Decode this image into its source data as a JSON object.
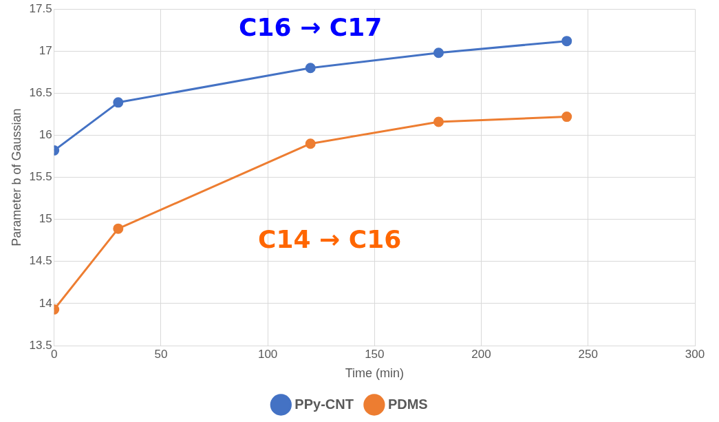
{
  "chart_data": {
    "type": "line",
    "xlabel": "Time (min)",
    "ylabel": "Parameter b of Gaussian",
    "x": [
      0,
      30,
      120,
      180,
      240
    ],
    "xlim": [
      0,
      300
    ],
    "xticks": [
      0,
      50,
      100,
      150,
      200,
      250,
      300
    ],
    "ylim": [
      13.5,
      17.5
    ],
    "yticks": [
      13.5,
      14,
      14.5,
      15,
      15.5,
      16,
      16.5,
      17,
      17.5
    ],
    "series": [
      {
        "name": "PPy-CNT",
        "color": "#4472c4",
        "values": [
          15.82,
          16.39,
          16.8,
          16.98,
          17.12
        ]
      },
      {
        "name": "PDMS",
        "color": "#ed7d31",
        "values": [
          13.93,
          14.89,
          15.9,
          16.16,
          16.22
        ]
      }
    ],
    "annotations": [
      "C16 → C17",
      "C14 → C16"
    ],
    "grid": true,
    "legend": "bottom",
    "marker": "circle",
    "line_style": "solid"
  }
}
